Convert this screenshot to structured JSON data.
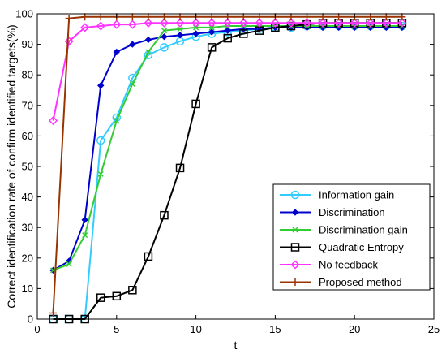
{
  "chart_data": {
    "type": "line",
    "xlabel": "t",
    "ylabel": "Correct identification rate of confirm identified targets(%)",
    "xlim": [
      0,
      25
    ],
    "ylim": [
      0,
      100
    ],
    "xticks": [
      0,
      5,
      10,
      15,
      20,
      25
    ],
    "yticks": [
      0,
      10,
      20,
      30,
      40,
      50,
      60,
      70,
      80,
      90,
      100
    ],
    "grid": false,
    "legend_position": "bottom-right",
    "x": [
      1,
      2,
      3,
      4,
      5,
      6,
      7,
      8,
      9,
      10,
      11,
      12,
      13,
      14,
      15,
      16,
      17,
      18,
      19,
      20,
      21,
      22,
      23
    ],
    "series": [
      {
        "name": "Information gain",
        "color": "#33ccff",
        "marker": "circle",
        "values": [
          0,
          0,
          0,
          58.5,
          66,
          79,
          86.5,
          89,
          91,
          92.5,
          93.5,
          94,
          94.5,
          95,
          95.5,
          95.5,
          96,
          96,
          96,
          96,
          96,
          96,
          96
        ]
      },
      {
        "name": "Discrimination",
        "color": "#0000cc",
        "marker": "diamond",
        "values": [
          16,
          19,
          32.5,
          76.5,
          87.5,
          90,
          91.5,
          92.5,
          93,
          93.5,
          94,
          94.5,
          95,
          95,
          95.5,
          95.5,
          95.5,
          95.5,
          95.5,
          95.5,
          95.5,
          95.5,
          95.5
        ]
      },
      {
        "name": "Discrimination gain",
        "color": "#33cc33",
        "marker": "x",
        "values": [
          16,
          18,
          27.5,
          47.5,
          65,
          77,
          87.5,
          94.5,
          95,
          95.5,
          95.5,
          96,
          96,
          96,
          96,
          96,
          96,
          96,
          96,
          96,
          96,
          96,
          96
        ]
      },
      {
        "name": "Quadratic Entropy",
        "color": "#000000",
        "marker": "square",
        "values": [
          0,
          0,
          0,
          7,
          7.5,
          9.5,
          20.5,
          34,
          49.5,
          70.5,
          89,
          92,
          93.5,
          94.5,
          95.5,
          96,
          96.5,
          97,
          97,
          97,
          97,
          97,
          97
        ]
      },
      {
        "name": "No feedback",
        "color": "#ff33ff",
        "marker": "diamond",
        "values": [
          65,
          91,
          95.5,
          96,
          96.5,
          96.5,
          97,
          97,
          97,
          97,
          97,
          97,
          97,
          97,
          97,
          97,
          97,
          97,
          97,
          97,
          97,
          97,
          97
        ]
      },
      {
        "name": "Proposed method",
        "color": "#993300",
        "marker": "plus",
        "values": [
          2,
          98.5,
          99,
          99,
          99,
          99,
          99,
          99,
          99,
          99,
          99,
          99,
          99,
          99,
          99,
          99,
          99,
          99,
          99,
          99,
          99,
          99,
          99
        ]
      }
    ]
  }
}
